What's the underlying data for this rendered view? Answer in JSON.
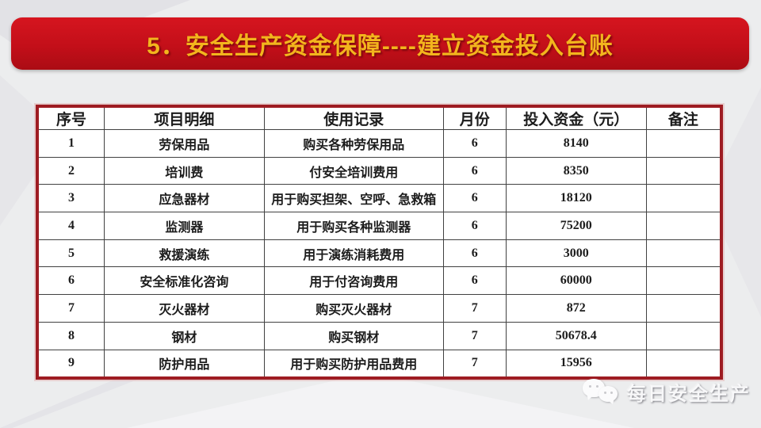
{
  "slide": {
    "title": "5．安全生产资金保障----建立资金投入台账"
  },
  "table": {
    "headers": [
      "序号",
      "项目明细",
      "使用记录",
      "月份",
      "投入资金（元）",
      "备注"
    ],
    "rows": [
      [
        "1",
        "劳保用品",
        "购买各种劳保用品",
        "6",
        "8140",
        ""
      ],
      [
        "2",
        "培训费",
        "付安全培训费用",
        "6",
        "8350",
        ""
      ],
      [
        "3",
        "应急器材",
        "用于购买担架、空呼、急救箱",
        "6",
        "18120",
        ""
      ],
      [
        "4",
        "监测器",
        "用于购买各种监测器",
        "6",
        "75200",
        ""
      ],
      [
        "5",
        "救援演练",
        "用于演练消耗费用",
        "6",
        "3000",
        ""
      ],
      [
        "6",
        "安全标准化咨询",
        "用于付咨询费用",
        "6",
        "60000",
        ""
      ],
      [
        "7",
        "灭火器材",
        "购买灭火器材",
        "7",
        "872",
        ""
      ],
      [
        "8",
        "钢材",
        "购买钢材",
        "7",
        "50678.4",
        ""
      ],
      [
        "9",
        "防护用品",
        "用于购买防护用品费用",
        "7",
        "15956",
        ""
      ]
    ]
  },
  "watermark": {
    "label": "每日安全生产",
    "icon": "wechat-icon"
  },
  "colors": {
    "banner_red": "#c30f19",
    "banner_text_gold": "#f3b51d",
    "table_frame_red": "#9e1c22",
    "grid_line": "#414141",
    "background_gray": "#ecedee"
  }
}
